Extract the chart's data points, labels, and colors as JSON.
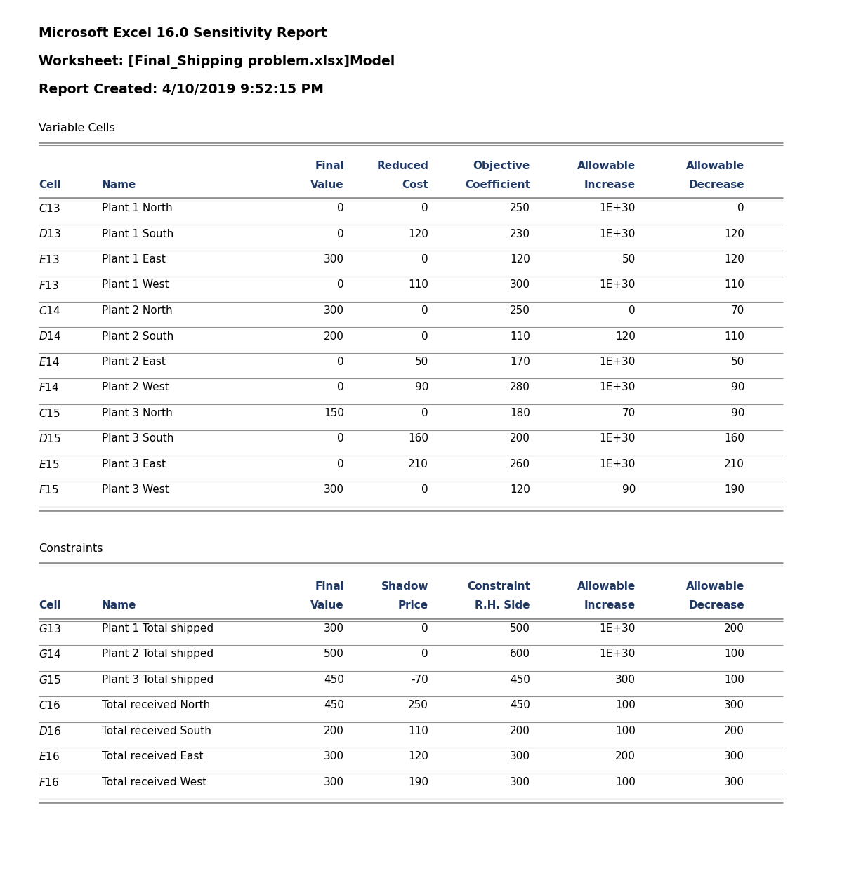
{
  "title_lines": [
    "Microsoft Excel 16.0 Sensitivity Report",
    "Worksheet: [Final_Shipping problem.xlsx]Model",
    "Report Created: 4/10/2019 9:52:15 PM"
  ],
  "var_section_label": "Variable Cells",
  "var_h1": [
    "",
    "",
    "Final",
    "Reduced",
    "Objective",
    "Allowable",
    "Allowable"
  ],
  "var_h2": [
    "Cell",
    "Name",
    "Value",
    "Cost",
    "Coefficient",
    "Increase",
    "Decrease"
  ],
  "var_rows": [
    [
      "$C$13",
      "Plant 1 North",
      "0",
      "0",
      "250",
      "1E+30",
      "0"
    ],
    [
      "$D$13",
      "Plant 1 South",
      "0",
      "120",
      "230",
      "1E+30",
      "120"
    ],
    [
      "$E$13",
      "Plant 1 East",
      "300",
      "0",
      "120",
      "50",
      "120"
    ],
    [
      "$F$13",
      "Plant 1 West",
      "0",
      "110",
      "300",
      "1E+30",
      "110"
    ],
    [
      "$C$14",
      "Plant 2 North",
      "300",
      "0",
      "250",
      "0",
      "70"
    ],
    [
      "$D$14",
      "Plant 2 South",
      "200",
      "0",
      "110",
      "120",
      "110"
    ],
    [
      "$E$14",
      "Plant 2 East",
      "0",
      "50",
      "170",
      "1E+30",
      "50"
    ],
    [
      "$F$14",
      "Plant 2 West",
      "0",
      "90",
      "280",
      "1E+30",
      "90"
    ],
    [
      "$C$15",
      "Plant 3 North",
      "150",
      "0",
      "180",
      "70",
      "90"
    ],
    [
      "$D$15",
      "Plant 3 South",
      "0",
      "160",
      "200",
      "1E+30",
      "160"
    ],
    [
      "$E$15",
      "Plant 3 East",
      "0",
      "210",
      "260",
      "1E+30",
      "210"
    ],
    [
      "$F$15",
      "Plant 3 West",
      "300",
      "0",
      "120",
      "90",
      "190"
    ]
  ],
  "con_section_label": "Constraints",
  "con_h1": [
    "",
    "",
    "Final",
    "Shadow",
    "Constraint",
    "Allowable",
    "Allowable"
  ],
  "con_h2": [
    "Cell",
    "Name",
    "Value",
    "Price",
    "R.H. Side",
    "Increase",
    "Decrease"
  ],
  "con_rows": [
    [
      "$G$13",
      "Plant 1 Total shipped",
      "300",
      "0",
      "500",
      "1E+30",
      "200"
    ],
    [
      "$G$14",
      "Plant 2 Total shipped",
      "500",
      "0",
      "600",
      "1E+30",
      "100"
    ],
    [
      "$G$15",
      "Plant 3 Total shipped",
      "450",
      "-70",
      "450",
      "300",
      "100"
    ],
    [
      "$C$16",
      "Total received North",
      "450",
      "250",
      "450",
      "100",
      "300"
    ],
    [
      "$D$16",
      "Total received South",
      "200",
      "110",
      "200",
      "100",
      "200"
    ],
    [
      "$E$16",
      "Total received East",
      "300",
      "120",
      "300",
      "200",
      "300"
    ],
    [
      "$F$16",
      "Total received West",
      "300",
      "190",
      "300",
      "100",
      "300"
    ]
  ],
  "header_color": "#1F3864",
  "text_color": "#000000",
  "line_color": "#909090",
  "bg_color": "#FFFFFF",
  "fig_width": 12.26,
  "fig_height": 12.48,
  "dpi": 100
}
